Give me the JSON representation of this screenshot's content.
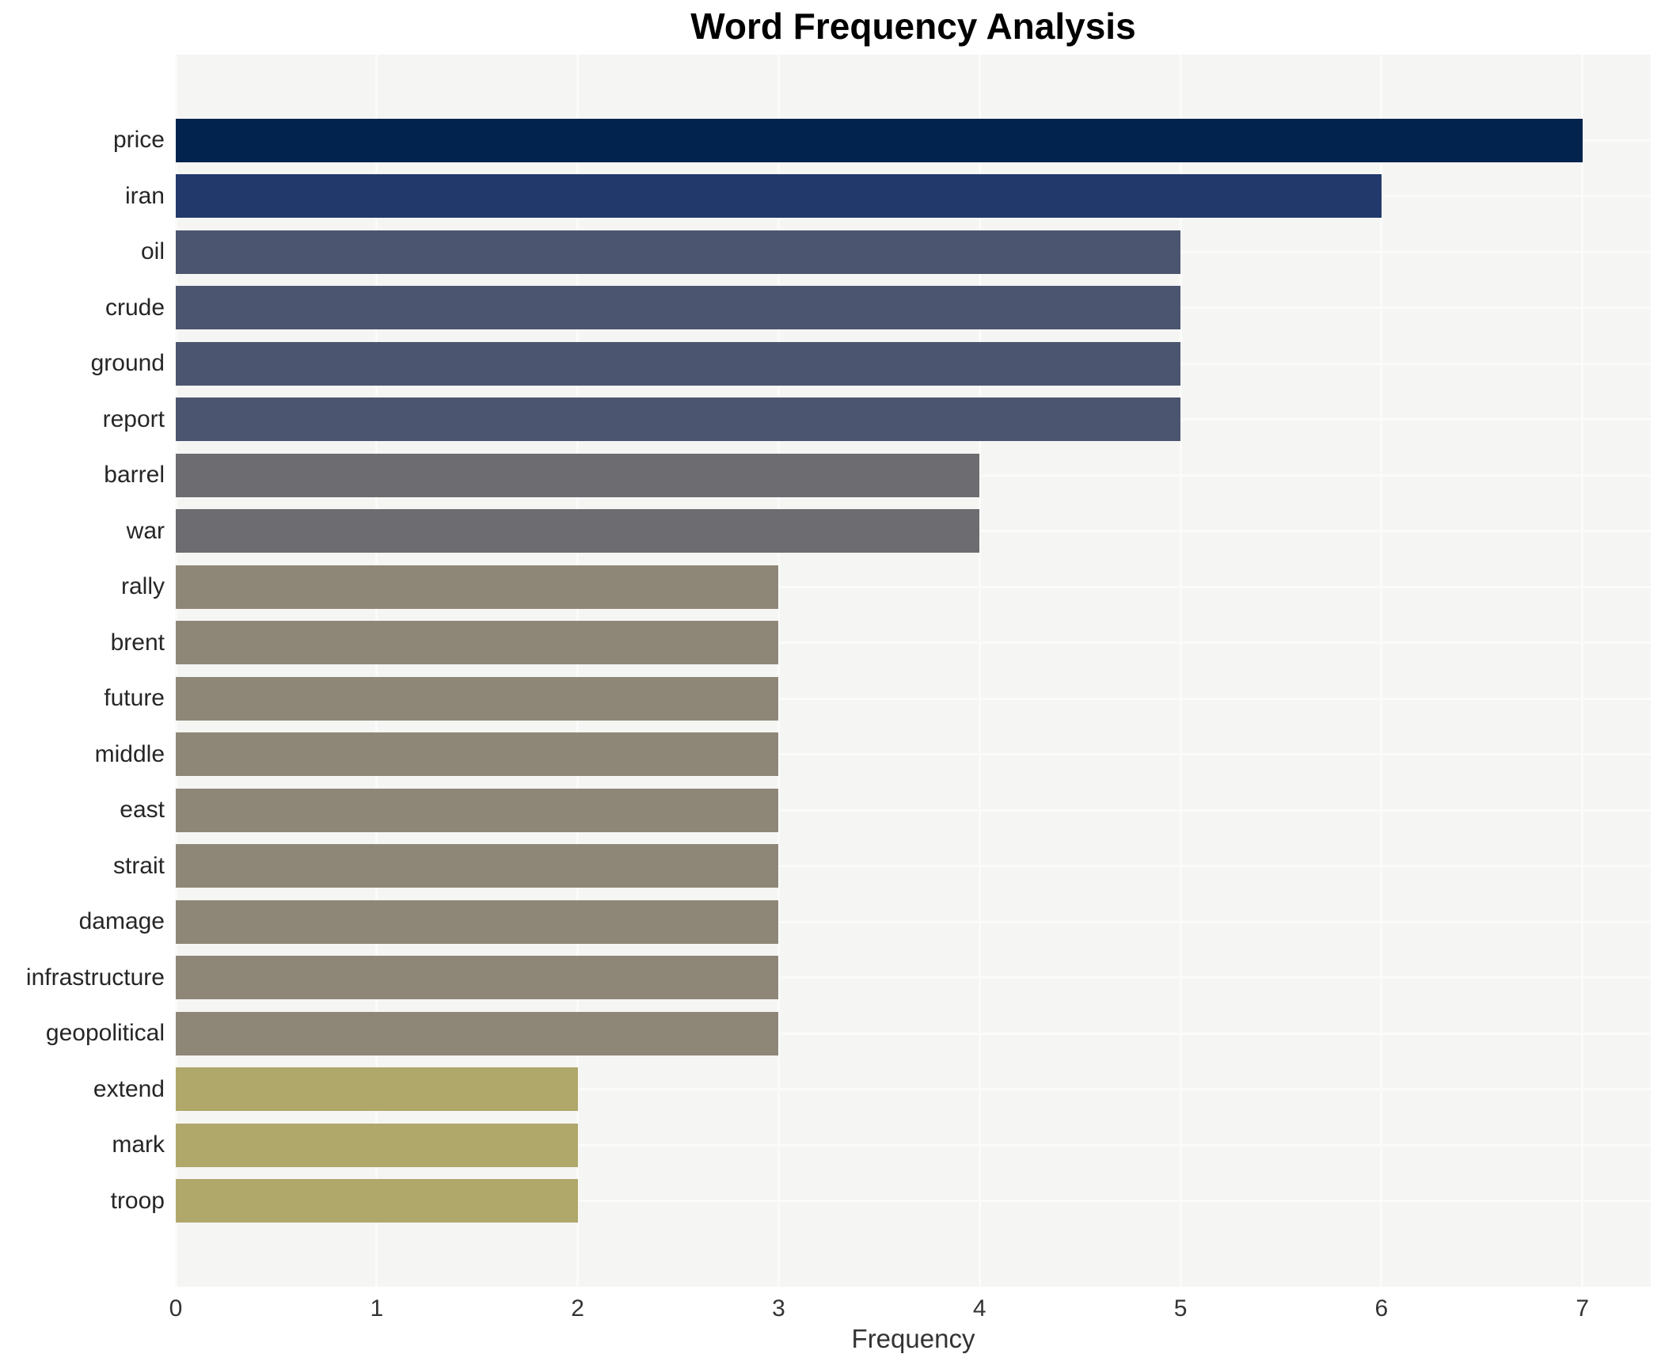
{
  "title": "Word Frequency Analysis",
  "colors": {
    "page_bg": "#ffffff",
    "panel_bg": "#f5f5f3",
    "gridline": "#fbfbfa",
    "title_text": "#000000",
    "axis_text": "#333333",
    "category_text": "#262626"
  },
  "chart_data": {
    "type": "bar",
    "orientation": "horizontal",
    "title": "Word Frequency Analysis",
    "xlabel": "Frequency",
    "ylabel": "",
    "xlim": [
      0,
      7
    ],
    "x_ticks": [
      "0",
      "1",
      "2",
      "3",
      "4",
      "5",
      "6",
      "7"
    ],
    "grid": "vertical and horizontal white gridlines on light gray panel",
    "legend": "none",
    "categories": [
      "price",
      "iran",
      "oil",
      "crude",
      "ground",
      "report",
      "barrel",
      "war",
      "rally",
      "brent",
      "future",
      "middle",
      "east",
      "strait",
      "damage",
      "infrastructure",
      "geopolitical",
      "extend",
      "mark",
      "troop"
    ],
    "values": [
      7,
      6,
      5,
      5,
      5,
      5,
      4,
      4,
      3,
      3,
      3,
      3,
      3,
      3,
      3,
      3,
      3,
      2,
      2,
      2
    ],
    "bars": [
      {
        "label": "price",
        "value": 7,
        "color": "#02234e"
      },
      {
        "label": "iran",
        "value": 6,
        "color": "#213a6b"
      },
      {
        "label": "oil",
        "value": 5,
        "color": "#4c5570"
      },
      {
        "label": "crude",
        "value": 5,
        "color": "#4c5570"
      },
      {
        "label": "ground",
        "value": 5,
        "color": "#4c5570"
      },
      {
        "label": "report",
        "value": 5,
        "color": "#4c5570"
      },
      {
        "label": "barrel",
        "value": 4,
        "color": "#6c6c71"
      },
      {
        "label": "war",
        "value": 4,
        "color": "#6c6c71"
      },
      {
        "label": "rally",
        "value": 3,
        "color": "#8e8778"
      },
      {
        "label": "brent",
        "value": 3,
        "color": "#8e8778"
      },
      {
        "label": "future",
        "value": 3,
        "color": "#8e8778"
      },
      {
        "label": "middle",
        "value": 3,
        "color": "#8e8778"
      },
      {
        "label": "east",
        "value": 3,
        "color": "#8e8778"
      },
      {
        "label": "strait",
        "value": 3,
        "color": "#8e8778"
      },
      {
        "label": "damage",
        "value": 3,
        "color": "#8e8778"
      },
      {
        "label": "infrastructure",
        "value": 3,
        "color": "#8e8778"
      },
      {
        "label": "geopolitical",
        "value": 3,
        "color": "#8e8778"
      },
      {
        "label": "extend",
        "value": 2,
        "color": "#b0a76b"
      },
      {
        "label": "mark",
        "value": 2,
        "color": "#b0a76b"
      },
      {
        "label": "troop",
        "value": 2,
        "color": "#b0a76b"
      }
    ]
  }
}
